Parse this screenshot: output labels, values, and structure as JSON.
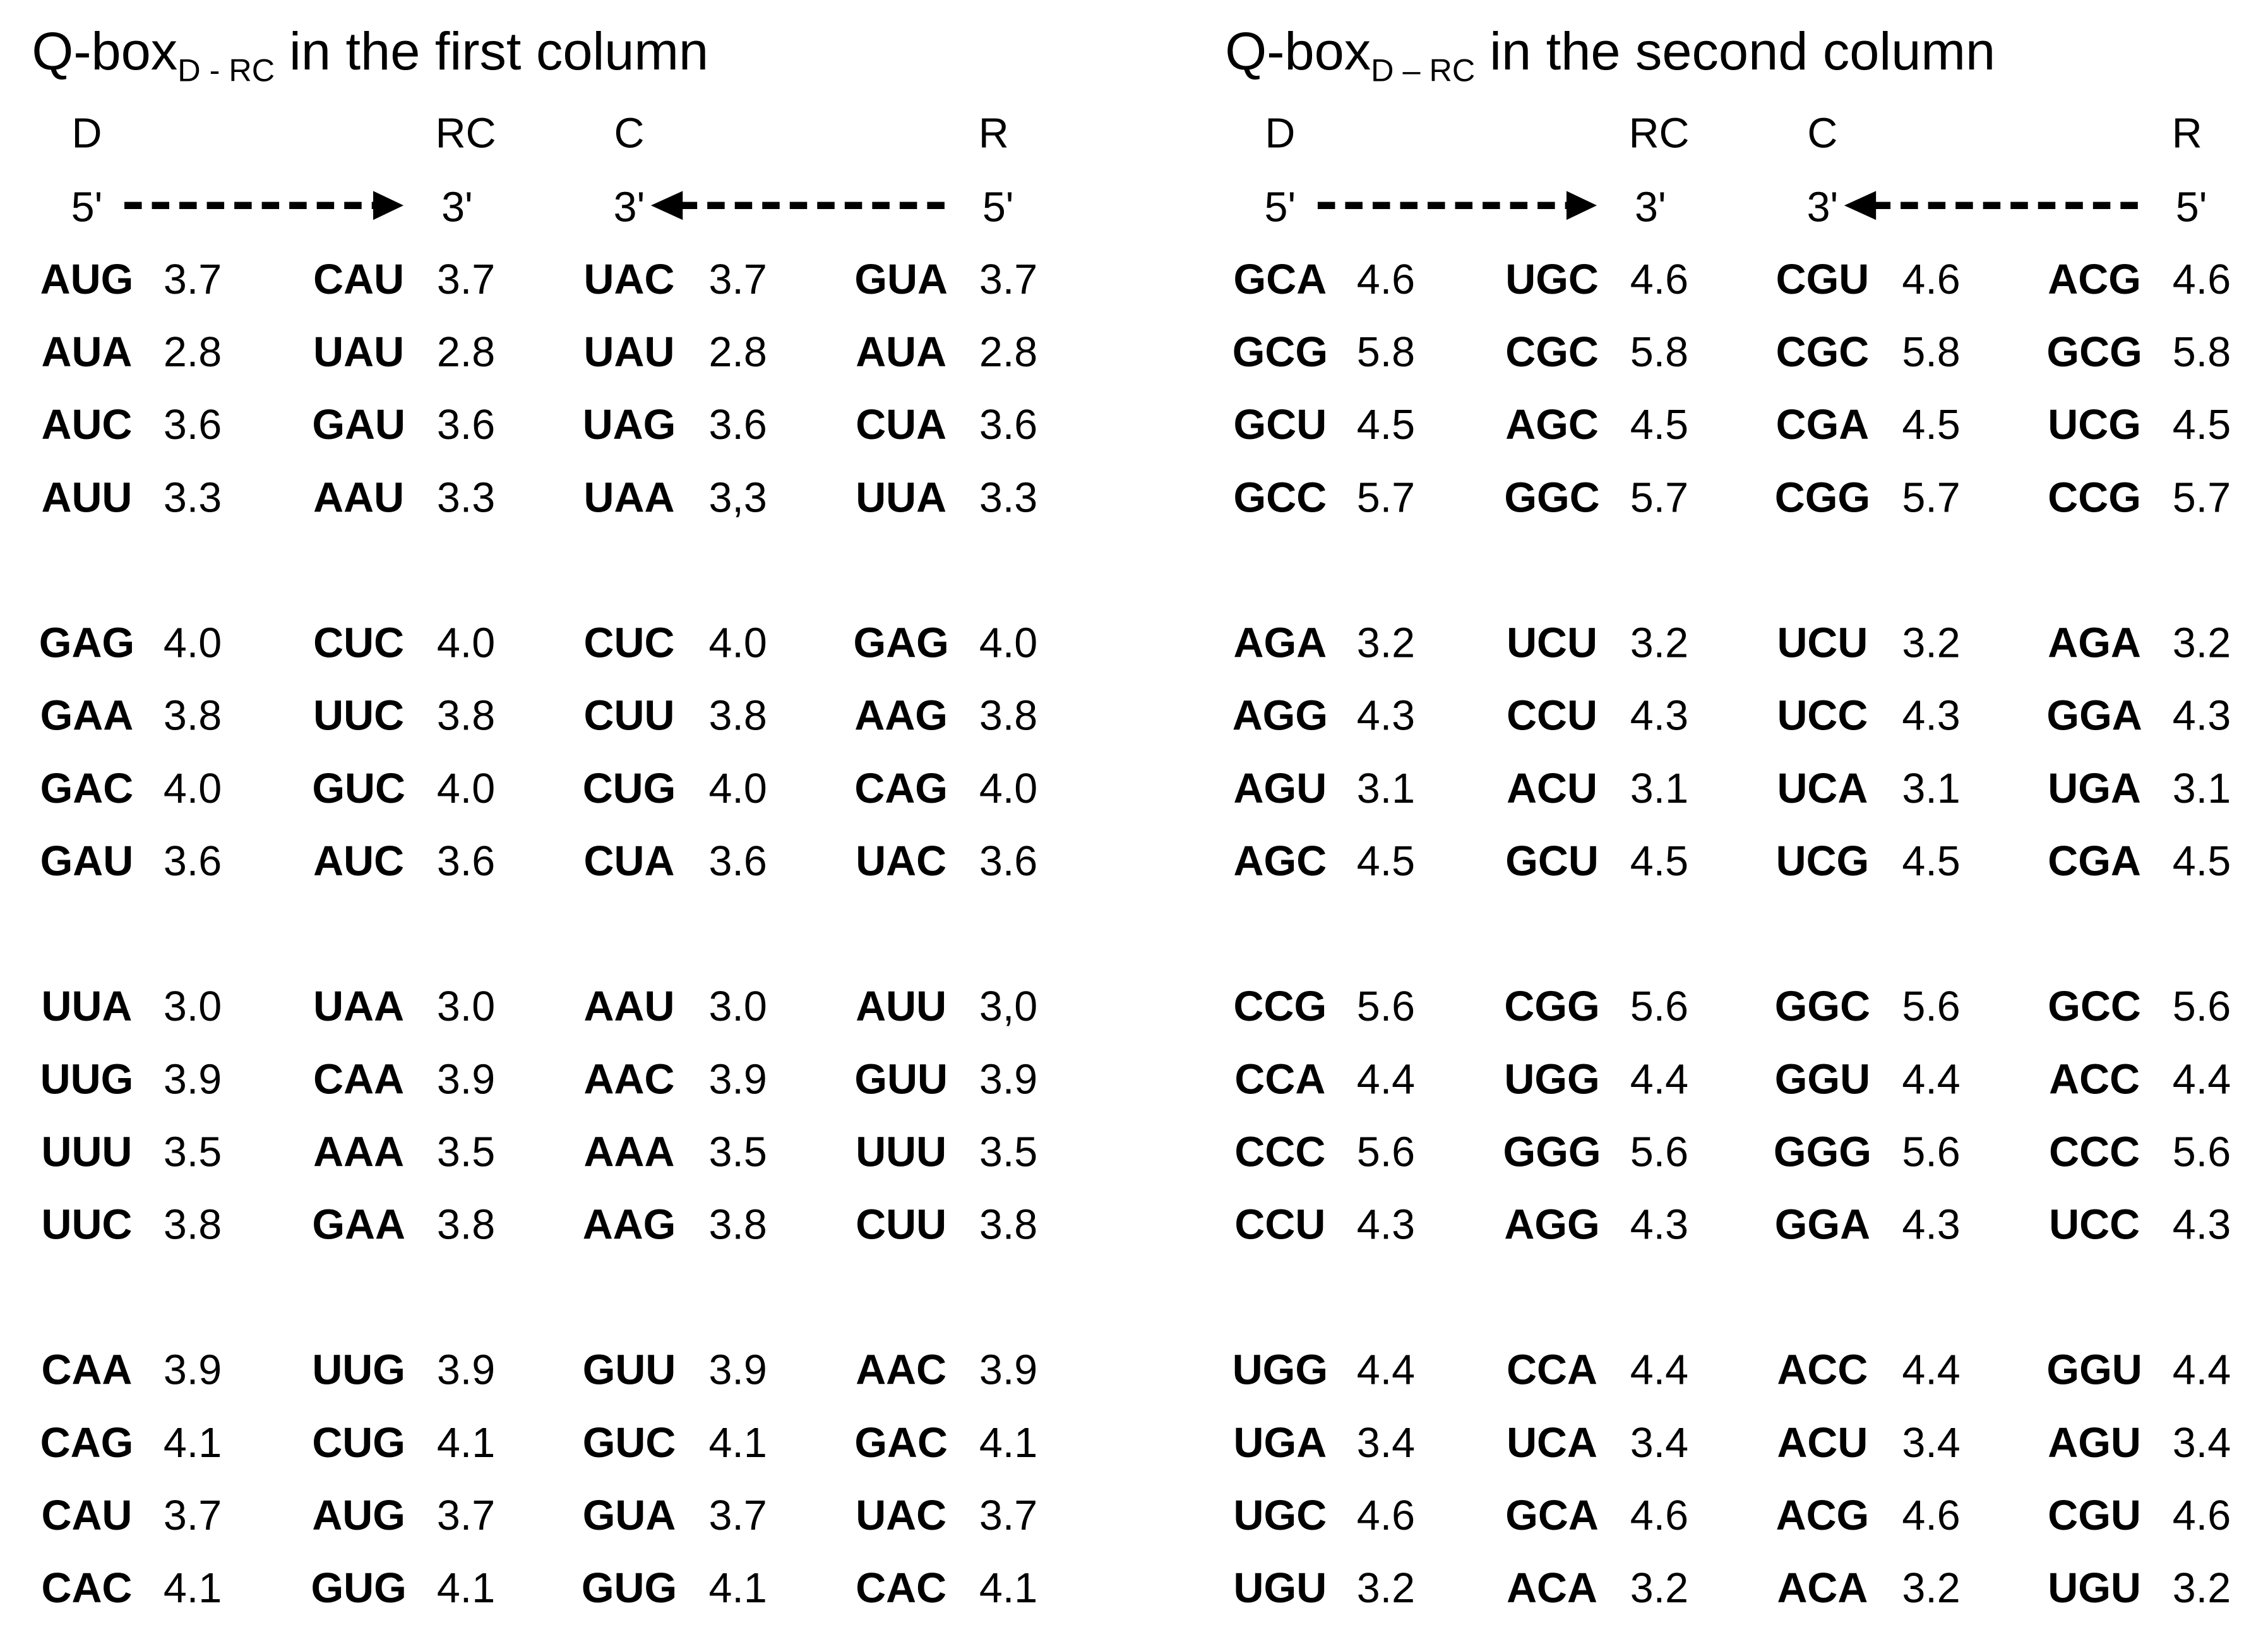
{
  "panels": [
    {
      "title": "Q-box",
      "title_sub": "D - RC",
      "title_rest": "in the first column",
      "headers": [
        "D",
        "RC",
        "C",
        "R"
      ],
      "ends": [
        "5'",
        "3'",
        "3'",
        "5'"
      ],
      "groups": [
        [
          [
            "AUG",
            "3.7",
            "CAU",
            "3.7",
            "UAC",
            "3.7",
            "GUA",
            "3.7"
          ],
          [
            "AUA",
            "2.8",
            "UAU",
            "2.8",
            "UAU",
            "2.8",
            "AUA",
            "2.8"
          ],
          [
            "AUC",
            "3.6",
            "GAU",
            "3.6",
            "UAG",
            "3.6",
            "CUA",
            "3.6"
          ],
          [
            "AUU",
            "3.3",
            "AAU",
            "3.3",
            "UAA",
            "3,3",
            "UUA",
            "3.3"
          ]
        ],
        [
          [
            "GAG",
            "4.0",
            "CUC",
            "4.0",
            "CUC",
            "4.0",
            "GAG",
            "4.0"
          ],
          [
            "GAA",
            "3.8",
            "UUC",
            "3.8",
            "CUU",
            "3.8",
            "AAG",
            "3.8"
          ],
          [
            "GAC",
            "4.0",
            "GUC",
            "4.0",
            "CUG",
            "4.0",
            "CAG",
            "4.0"
          ],
          [
            "GAU",
            "3.6",
            "AUC",
            "3.6",
            "CUA",
            "3.6",
            "UAC",
            "3.6"
          ]
        ],
        [
          [
            "UUA",
            "3.0",
            "UAA",
            "3.0",
            "AAU",
            "3.0",
            "AUU",
            "3,0"
          ],
          [
            "UUG",
            "3.9",
            "CAA",
            "3.9",
            "AAC",
            "3.9",
            "GUU",
            "3.9"
          ],
          [
            "UUU",
            "3.5",
            "AAA",
            "3.5",
            "AAA",
            "3.5",
            "UUU",
            "3.5"
          ],
          [
            "UUC",
            "3.8",
            "GAA",
            "3.8",
            "AAG",
            "3.8",
            "CUU",
            "3.8"
          ]
        ],
        [
          [
            "CAA",
            "3.9",
            "UUG",
            "3.9",
            "GUU",
            "3.9",
            "AAC",
            "3.9"
          ],
          [
            "CAG",
            "4.1",
            "CUG",
            "4.1",
            "GUC",
            "4.1",
            "GAC",
            "4.1"
          ],
          [
            "CAU",
            "3.7",
            "AUG",
            "3.7",
            "GUA",
            "3.7",
            "UAC",
            "3.7"
          ],
          [
            "CAC",
            "4.1",
            "GUG",
            "4.1",
            "GUG",
            "4.1",
            "CAC",
            "4.1"
          ]
        ]
      ]
    },
    {
      "title": "Q-box",
      "title_sub": "D – RC",
      "title_rest": "in the second column",
      "headers": [
        "D",
        "RC",
        "C",
        "R"
      ],
      "ends": [
        "5'",
        "3'",
        "3'",
        "5'"
      ],
      "groups": [
        [
          [
            "GCA",
            "4.6",
            "UGC",
            "4.6",
            "CGU",
            "4.6",
            "ACG",
            "4.6"
          ],
          [
            "GCG",
            "5.8",
            "CGC",
            "5.8",
            "CGC",
            "5.8",
            "GCG",
            "5.8"
          ],
          [
            "GCU",
            "4.5",
            "AGC",
            "4.5",
            "CGA",
            "4.5",
            "UCG",
            "4.5"
          ],
          [
            "GCC",
            "5.7",
            "GGC",
            "5.7",
            "CGG",
            "5.7",
            "CCG",
            "5.7"
          ]
        ],
        [
          [
            "AGA",
            "3.2",
            "UCU",
            "3.2",
            "UCU",
            "3.2",
            "AGA",
            "3.2"
          ],
          [
            "AGG",
            "4.3",
            "CCU",
            "4.3",
            "UCC",
            "4.3",
            "GGA",
            "4.3"
          ],
          [
            "AGU",
            "3.1",
            "ACU",
            "3.1",
            "UCA",
            "3.1",
            "UGA",
            "3.1"
          ],
          [
            "AGC",
            "4.5",
            "GCU",
            "4.5",
            "UCG",
            "4.5",
            "CGA",
            "4.5"
          ]
        ],
        [
          [
            "CCG",
            "5.6",
            "CGG",
            "5.6",
            "GGC",
            "5.6",
            "GCC",
            "5.6"
          ],
          [
            "CCA",
            "4.4",
            "UGG",
            "4.4",
            "GGU",
            "4.4",
            "ACC",
            "4.4"
          ],
          [
            "CCC",
            "5.6",
            "GGG",
            "5.6",
            "GGG",
            "5.6",
            "CCC",
            "5.6"
          ],
          [
            "CCU",
            "4.3",
            "AGG",
            "4.3",
            "GGA",
            "4.3",
            "UCC",
            "4.3"
          ]
        ],
        [
          [
            "UGG",
            "4.4",
            "CCA",
            "4.4",
            "ACC",
            "4.4",
            "GGU",
            "4.4"
          ],
          [
            "UGA",
            "3.4",
            "UCA",
            "3.4",
            "ACU",
            "3.4",
            "AGU",
            "3.4"
          ],
          [
            "UGC",
            "4.6",
            "GCA",
            "4.6",
            "ACG",
            "4.6",
            "CGU",
            "4.6"
          ],
          [
            "UGU",
            "3.2",
            "ACA",
            "3.2",
            "ACA",
            "3.2",
            "UGU",
            "3.2"
          ]
        ]
      ]
    }
  ]
}
